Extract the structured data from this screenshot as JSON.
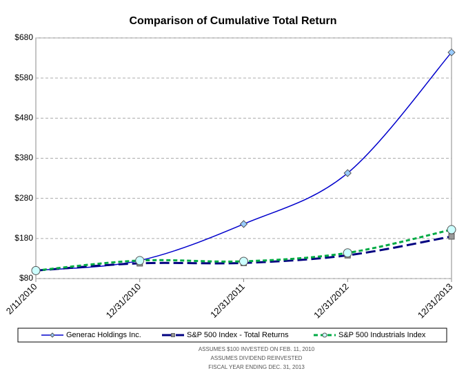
{
  "chart_data": {
    "type": "line",
    "title": "Comparison of Cumulative Total Return",
    "categories": [
      "2/11/2010",
      "12/31/2010",
      "12/31/2011",
      "12/31/2012",
      "12/31/2013"
    ],
    "series": [
      {
        "name": "Generac Holdings Inc.",
        "color": "#0000cc",
        "marker": "diamond",
        "marker_color": "#99ccff",
        "dash": "solid",
        "values": [
          100,
          125,
          216,
          343,
          644
        ]
      },
      {
        "name": "S&P 500 Index - Total Returns",
        "color": "#000080",
        "marker": "square",
        "marker_color": "#999999",
        "dash": "dashed",
        "values": [
          100,
          118,
          119,
          138,
          185
        ]
      },
      {
        "name": "S&P 500 Industrials Index",
        "color": "#00aa44",
        "marker": "circle",
        "marker_color": "#ccffff",
        "dash": "dotted",
        "values": [
          100,
          125,
          123,
          144,
          202
        ]
      }
    ],
    "ylim": [
      80,
      680
    ],
    "yticks": [
      {
        "value": 80,
        "label": "$80"
      },
      {
        "value": 180,
        "label": "$180"
      },
      {
        "value": 280,
        "label": "$280"
      },
      {
        "value": 380,
        "label": "$380"
      },
      {
        "value": 480,
        "label": "$480"
      },
      {
        "value": 580,
        "label": "$580"
      },
      {
        "value": 680,
        "label": "$680"
      }
    ],
    "grid": true,
    "legend": "bottom",
    "notes": [
      "ASSUMES $100 INVESTED ON FEB. 11, 2010",
      "ASSUMES DIVIDEND REINVESTED",
      "FISCAL YEAR ENDING DEC. 31, 2013"
    ]
  }
}
